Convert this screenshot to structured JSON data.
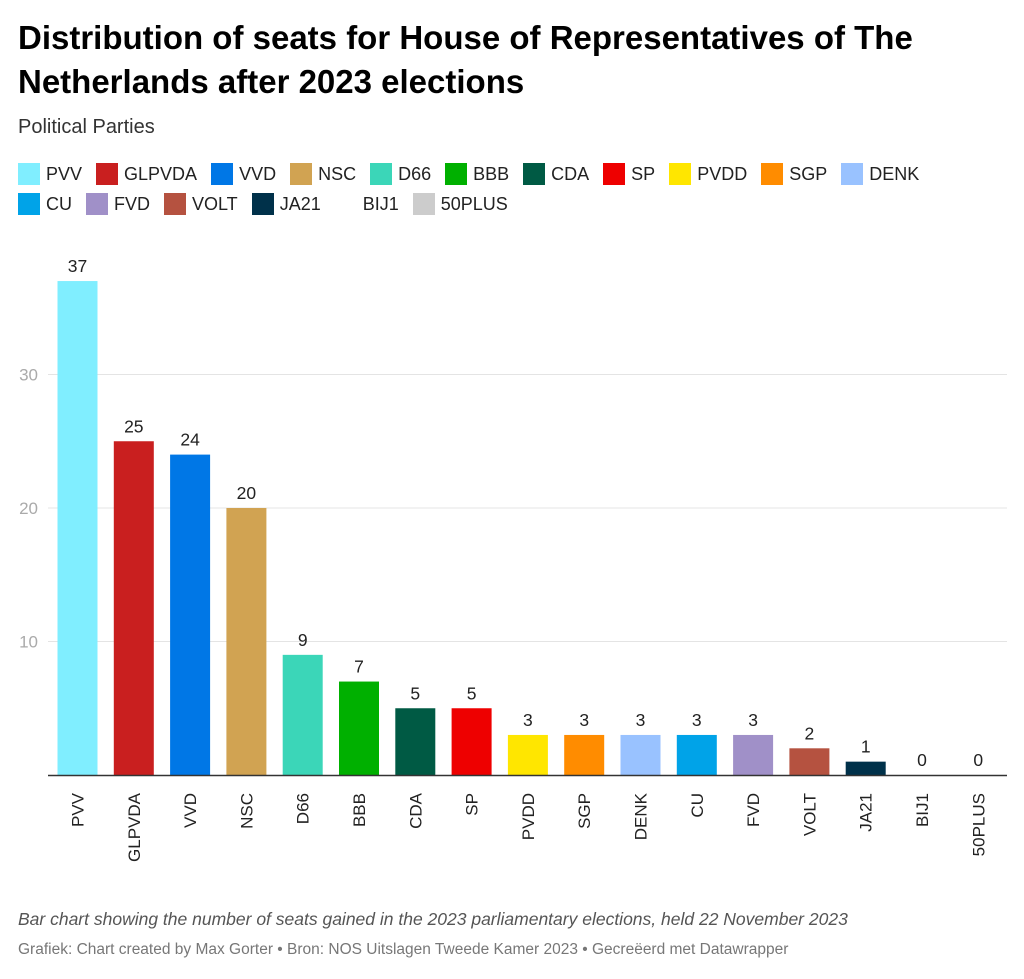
{
  "chart_data": {
    "type": "bar",
    "title": "Distribution of seats for House of Representatives of The Netherlands after 2023 elections",
    "subtitle": "Political Parties",
    "categories": [
      "PVV",
      "GLPVDA",
      "VVD",
      "NSC",
      "D66",
      "BBB",
      "CDA",
      "SP",
      "PVDD",
      "SGP",
      "DENK",
      "CU",
      "FVD",
      "VOLT",
      "JA21",
      "BIJ1",
      "50PLUS"
    ],
    "values": [
      37,
      25,
      24,
      20,
      9,
      7,
      5,
      5,
      3,
      3,
      3,
      3,
      3,
      2,
      1,
      0,
      0
    ],
    "colors": [
      "#80eeff",
      "#c91f1f",
      "#0077e6",
      "#d1a352",
      "#3bd6b8",
      "#00b000",
      "#005a44",
      "#ee0000",
      "#ffe600",
      "#ff8c00",
      "#99c2ff",
      "#00a3e8",
      "#a090c8",
      "#b55240",
      "#00314a",
      "#ffffff",
      "#cccccc"
    ],
    "ylim": [
      0,
      37
    ],
    "yticks": [
      10,
      20,
      30
    ],
    "grid": true,
    "legend": "top",
    "xlabel": "",
    "ylabel": ""
  },
  "legend_rows": [
    [
      0,
      1,
      2,
      3,
      4,
      5,
      6,
      7,
      8,
      9,
      10
    ],
    [
      11,
      12,
      13,
      14,
      15,
      16
    ]
  ],
  "caption": "Bar chart showing the number of seats gained in the 2023 parliamentary elections, held 22 November 2023",
  "source": "Grafiek: Chart created by Max Gorter • Bron: NOS Uitslagen Tweede Kamer 2023 • Gecreëerd met Datawrapper"
}
